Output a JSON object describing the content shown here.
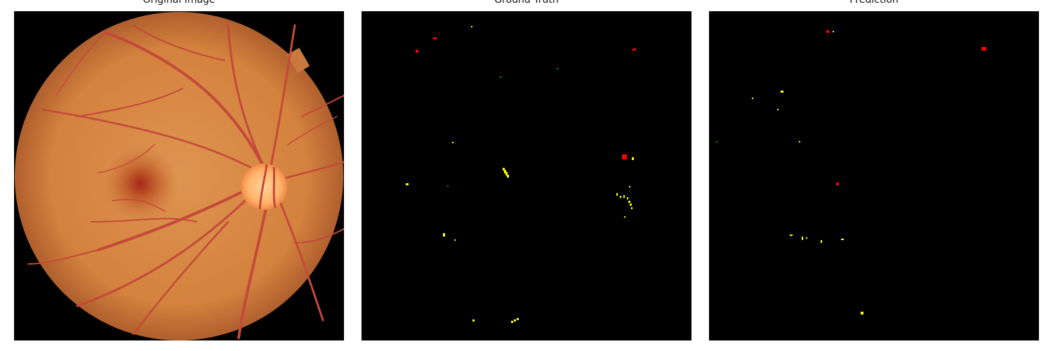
{
  "panels": [
    {
      "id": "original",
      "title": "Original Image"
    },
    {
      "id": "ground_truth",
      "title": "Ground Truth"
    },
    {
      "id": "prediction",
      "title": "Prediction"
    }
  ],
  "legend_colors": {
    "red_lesion": "#ff0000",
    "yellow_lesion": "#ffff00",
    "green_lesion": "#00a000"
  },
  "fundus_colors": {
    "retina": "#d88a45",
    "retina_edge": "#b06030",
    "optic_disc": "#ffc07a",
    "fovea": "#b23a1a",
    "vessel": "#c4493a"
  }
}
